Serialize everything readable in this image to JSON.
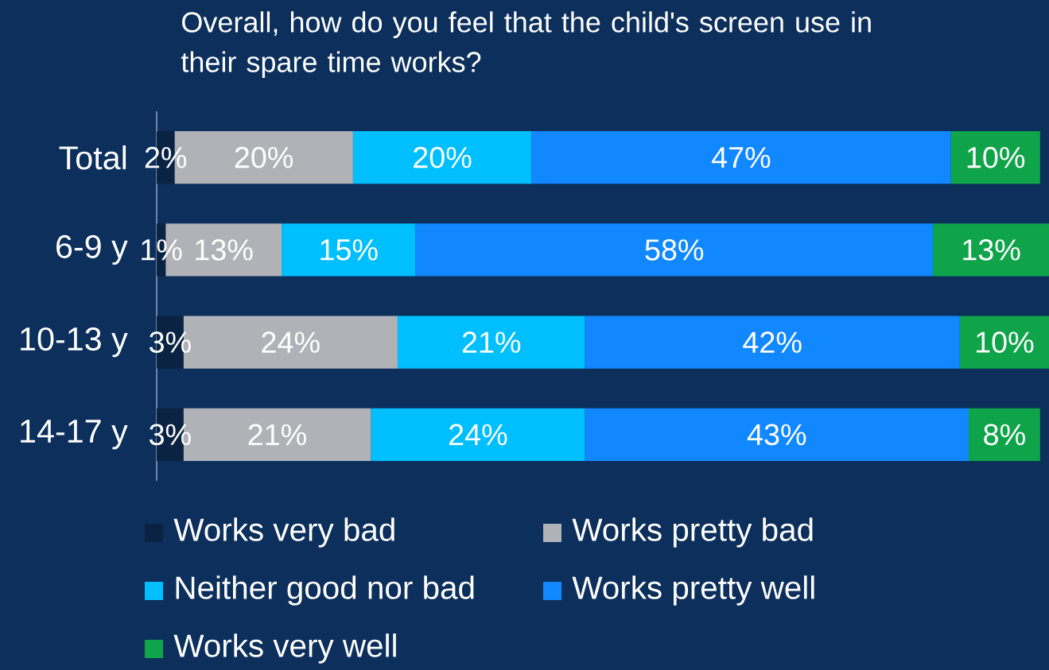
{
  "chart_data": {
    "type": "bar",
    "orientation": "horizontal",
    "stacked": true,
    "title": "Overall, how do you feel that the child's screen use in their spare time works?",
    "categories": [
      "Total",
      "6-9 y",
      "10-13 y",
      "14-17 y"
    ],
    "legend": "bottom",
    "series": [
      {
        "name": "Works very bad",
        "color": "#0b2342",
        "values": [
          2,
          1,
          3,
          3
        ],
        "value_labels": [
          "2%",
          "1%",
          "3%",
          "3%"
        ]
      },
      {
        "name": "Works pretty bad",
        "color": "#b0b2b8",
        "values": [
          20,
          13,
          24,
          21
        ],
        "value_labels": [
          "20%",
          "13%",
          "24%",
          "21%"
        ]
      },
      {
        "name": "Neither good nor bad",
        "color": "#00bfff",
        "values": [
          20,
          15,
          21,
          24
        ],
        "value_labels": [
          "20%",
          "15%",
          "21%",
          "24%"
        ]
      },
      {
        "name": "Works pretty well",
        "color": "#1188ff",
        "values": [
          47,
          58,
          42,
          43
        ],
        "value_labels": [
          "47%",
          "58%",
          "42%",
          "43%"
        ]
      },
      {
        "name": "Works very well",
        "color": "#10a44a",
        "values": [
          10,
          13,
          10,
          8
        ],
        "value_labels": [
          "10%",
          "13%",
          "10%",
          "8%"
        ]
      }
    ]
  }
}
